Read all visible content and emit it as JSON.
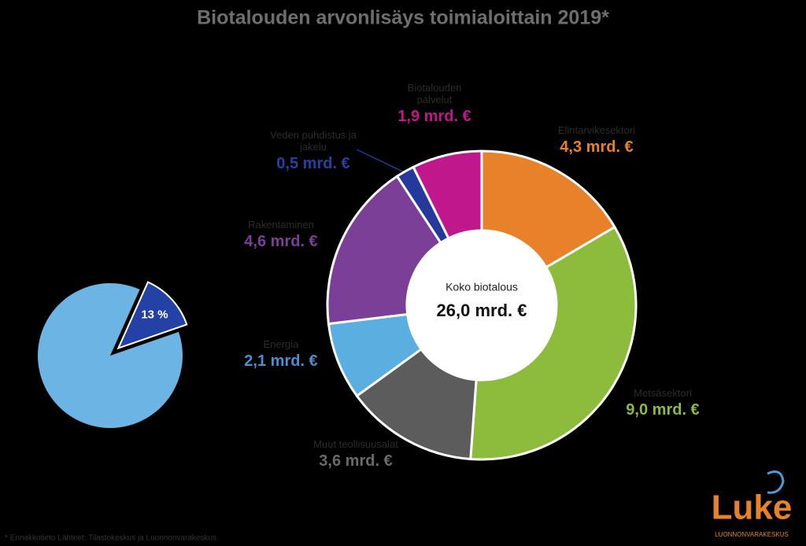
{
  "chart_data": [
    {
      "type": "donut",
      "title": "Biotalouden arvonlisäys toimialoittain 2019*",
      "center_label": "Koko biotalous",
      "total": 26.0,
      "total_label": "26,0 mrd. €",
      "categories": [
        "Elintarvikesektori",
        "Metsäsektori",
        "Muut teollisuusalat",
        "Energia",
        "Rakentaminen",
        "Veden puhdistus ja jakelu",
        "Biotalouden palvelut"
      ],
      "values": [
        4.3,
        9.0,
        3.6,
        2.1,
        4.6,
        0.5,
        1.9
      ],
      "value_labels": [
        "4,3 mrd. €",
        "9,0 mrd. €",
        "3,6 mrd. €",
        "2,1 mrd. €",
        "4,6 mrd. €",
        "0,5 mrd. €",
        "1,9 mrd. €"
      ],
      "colors": [
        "#e8822a",
        "#8dbb3c",
        "#5c5c5c",
        "#5aaee0",
        "#7b3f98",
        "#24399a",
        "#c0188c"
      ]
    },
    {
      "type": "pie",
      "values": [
        13,
        87
      ],
      "value_labels": [
        "13 %",
        null
      ],
      "colors": [
        "#2442a6",
        "#6cb4e4"
      ]
    }
  ],
  "footnote": "* Ennakkotieto Lähteet: Tilastokeskus ja Luonnonvarakeskus",
  "logo": {
    "name": "Luke",
    "subtitle": "LUONNONVARAKESKUS"
  }
}
